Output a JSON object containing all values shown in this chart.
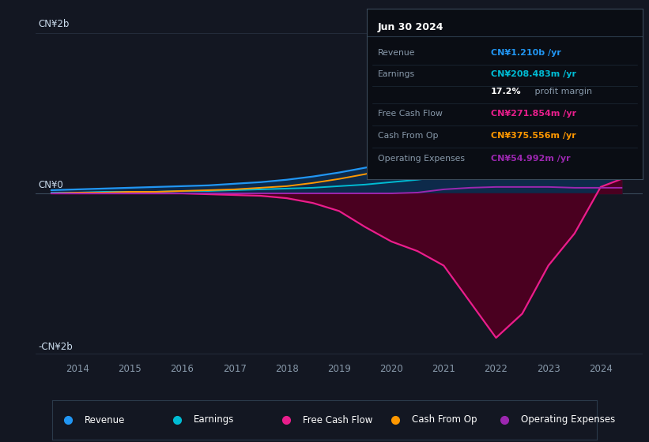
{
  "background_color": "#131722",
  "plot_bg_color": "#131722",
  "info_box_bg": "#0a0d14",
  "y_label_top": "CN¥2b",
  "y_label_zero": "CN¥0",
  "y_label_bottom": "-CN¥2b",
  "x_ticks": [
    2014,
    2015,
    2016,
    2017,
    2018,
    2019,
    2020,
    2021,
    2022,
    2023,
    2024
  ],
  "ylim": [
    -2.3,
    2.3
  ],
  "xlim": [
    2013.2,
    2024.8
  ],
  "colors": {
    "revenue": "#2196f3",
    "earnings": "#00bcd4",
    "free_cash_flow": "#e91e8c",
    "cash_from_op": "#ff9800",
    "operating_expenses": "#9c27b0",
    "revenue_fill": "#0d2a4a",
    "free_cash_flow_fill": "#4a0020"
  },
  "legend": [
    {
      "label": "Revenue",
      "color": "#2196f3"
    },
    {
      "label": "Earnings",
      "color": "#00bcd4"
    },
    {
      "label": "Free Cash Flow",
      "color": "#e91e8c"
    },
    {
      "label": "Cash From Op",
      "color": "#ff9800"
    },
    {
      "label": "Operating Expenses",
      "color": "#9c27b0"
    }
  ],
  "info_title": "Jun 30 2024",
  "info_rows": [
    {
      "label": "Revenue",
      "value": "CN¥1.210b /yr",
      "value_color": "#2196f3"
    },
    {
      "label": "Earnings",
      "value": "CN¥208.483m /yr",
      "value_color": "#00bcd4"
    },
    {
      "label": "",
      "value": "17.2%",
      "value_color": "#ffffff",
      "suffix": " profit margin"
    },
    {
      "label": "Free Cash Flow",
      "value": "CN¥271.854m /yr",
      "value_color": "#e91e8c"
    },
    {
      "label": "Cash From Op",
      "value": "CN¥375.556m /yr",
      "value_color": "#ff9800"
    },
    {
      "label": "Operating Expenses",
      "value": "CN¥54.992m /yr",
      "value_color": "#9c27b0"
    }
  ],
  "years": [
    2013.5,
    2014.0,
    2014.5,
    2015.0,
    2015.5,
    2016.0,
    2016.5,
    2017.0,
    2017.5,
    2018.0,
    2018.5,
    2019.0,
    2019.5,
    2020.0,
    2020.5,
    2021.0,
    2021.5,
    2022.0,
    2022.5,
    2023.0,
    2023.5,
    2024.0,
    2024.4
  ],
  "revenue": [
    0.04,
    0.05,
    0.06,
    0.07,
    0.08,
    0.09,
    0.1,
    0.12,
    0.14,
    0.17,
    0.21,
    0.26,
    0.32,
    0.38,
    0.48,
    0.6,
    0.85,
    1.2,
    1.5,
    1.4,
    1.1,
    1.3,
    1.35
  ],
  "earnings": [
    0.01,
    0.01,
    0.02,
    0.02,
    0.02,
    0.03,
    0.03,
    0.04,
    0.05,
    0.06,
    0.07,
    0.09,
    0.11,
    0.14,
    0.17,
    0.21,
    0.25,
    0.3,
    0.32,
    0.29,
    0.26,
    0.29,
    0.31
  ],
  "free_cash_flow": [
    0.0,
    0.0,
    0.0,
    0.0,
    0.0,
    0.0,
    -0.01,
    -0.02,
    -0.03,
    -0.06,
    -0.12,
    -0.22,
    -0.42,
    -0.6,
    -0.72,
    -0.9,
    -1.35,
    -1.8,
    -1.5,
    -0.9,
    -0.5,
    0.08,
    0.18
  ],
  "cash_from_op": [
    0.0,
    0.01,
    0.01,
    0.02,
    0.02,
    0.03,
    0.04,
    0.05,
    0.07,
    0.09,
    0.13,
    0.18,
    0.24,
    0.32,
    0.42,
    0.52,
    0.6,
    0.52,
    0.42,
    0.36,
    0.34,
    0.38,
    0.42
  ],
  "operating_expenses": [
    0.0,
    0.0,
    0.0,
    0.0,
    0.0,
    0.0,
    0.0,
    0.0,
    0.0,
    0.0,
    0.0,
    0.0,
    0.0,
    0.0,
    0.01,
    0.05,
    0.07,
    0.08,
    0.08,
    0.08,
    0.07,
    0.07,
    0.07
  ]
}
